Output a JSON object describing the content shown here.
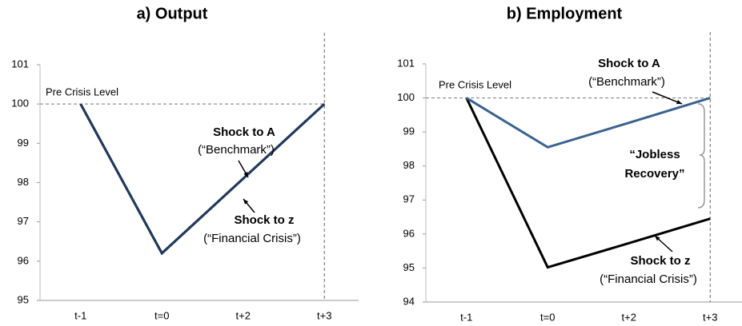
{
  "chart_data": [
    {
      "type": "line",
      "title": "a) Output",
      "categories": [
        "t-1",
        "t=0",
        "t+2",
        "t+3"
      ],
      "series": [
        {
          "name": "Shock to z",
          "color": "#000000",
          "values": [
            100,
            96.2,
            98.1,
            100
          ]
        },
        {
          "name": "Shock to A",
          "color": "#1f3a5f",
          "values": [
            100,
            96.2,
            98.1,
            100
          ]
        }
      ],
      "ylim": [
        95,
        101
      ],
      "yticks": [
        95,
        96,
        97,
        98,
        99,
        100,
        101
      ],
      "reference": {
        "value": 100,
        "label": "Pre Crisis Level"
      },
      "annotations": [
        "(“Financial Crisis”)",
        "(“Benchmark”)"
      ]
    },
    {
      "type": "line",
      "title": "b) Employment",
      "categories": [
        "t-1",
        "t=0",
        "t+2",
        "t+3"
      ],
      "series": [
        {
          "name": "Shock to z",
          "color": "#000000",
          "values": [
            100,
            95.02,
            95.73,
            96.45
          ]
        },
        {
          "name": "Shock to A",
          "color": "#3a6290",
          "values": [
            100,
            98.55,
            99.27,
            100
          ]
        }
      ],
      "ylim": [
        94,
        101
      ],
      "yticks": [
        94,
        95,
        96,
        97,
        98,
        99,
        100,
        101
      ],
      "reference": {
        "value": 100,
        "label": "Pre Crisis Level"
      },
      "annotations": [
        "(“Financial Crisis”)",
        "(“Benchmark”)",
        "“Jobless",
        "Recovery”"
      ]
    }
  ]
}
